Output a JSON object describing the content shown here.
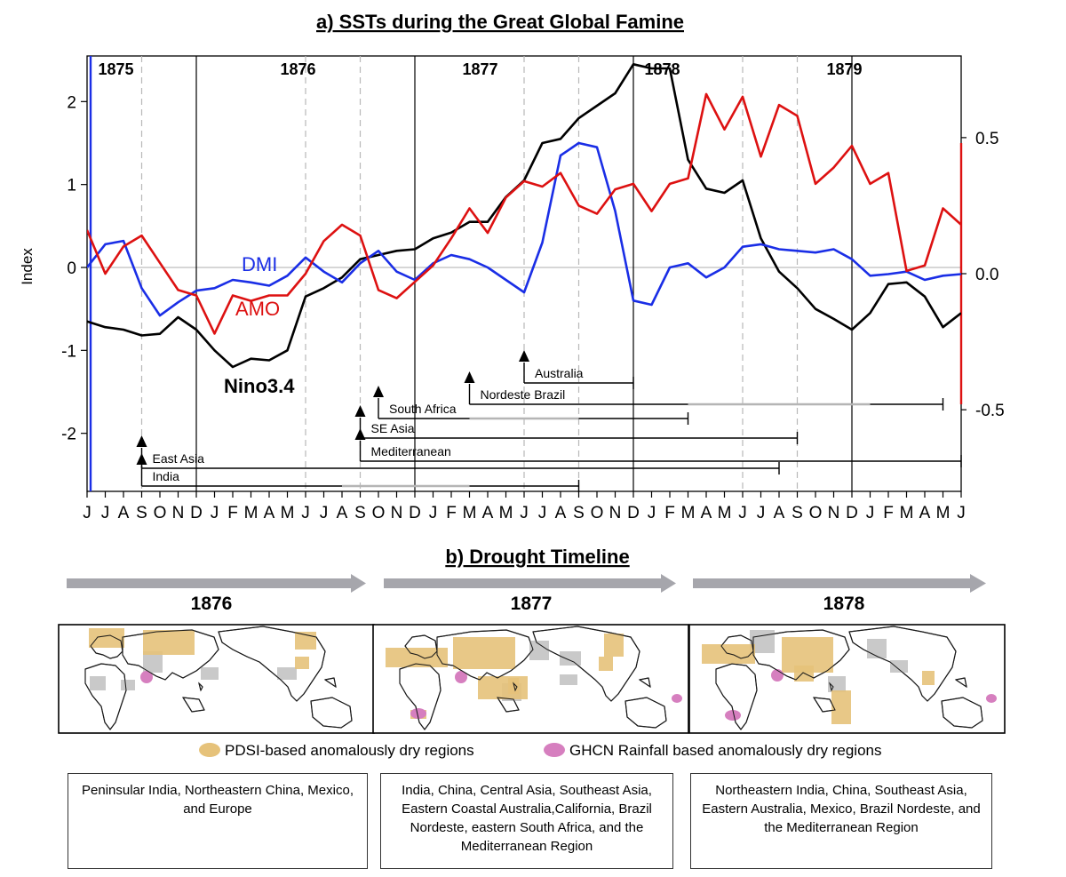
{
  "panel_a_title": "a) SSTs during the Great Global Famine",
  "panel_b_title": "b) Drought Timeline",
  "chart_data": {
    "type": "line",
    "title": "a) SSTs during the Great Global Famine",
    "ylabel": "Index",
    "ylim_left": [
      -2.7,
      2.55
    ],
    "yticks_left": [
      "-2",
      "-1",
      "0",
      "1",
      "2"
    ],
    "ylim_right": [
      -0.8,
      0.8
    ],
    "yticks_right": [
      "-0.5",
      "0.0",
      "0.5"
    ],
    "x_month_labels": [
      "J",
      "J",
      "A",
      "S",
      "O",
      "N",
      "D",
      "J",
      "F",
      "M",
      "A",
      "M",
      "J",
      "J",
      "A",
      "S",
      "O",
      "N",
      "D",
      "J",
      "F",
      "M",
      "A",
      "M",
      "J",
      "J",
      "A",
      "S",
      "O",
      "N",
      "D",
      "J",
      "F",
      "M",
      "A",
      "M",
      "J",
      "J",
      "A",
      "S",
      "O",
      "N",
      "D",
      "J",
      "F",
      "M",
      "A",
      "M",
      "J"
    ],
    "x_start": "1875-06",
    "x_end": "1879-06",
    "year_labels": [
      {
        "label": "1875",
        "month_index": 1
      },
      {
        "label": "1876",
        "month_index": 11
      },
      {
        "label": "1877",
        "month_index": 21
      },
      {
        "label": "1878",
        "month_index": 31
      },
      {
        "label": "1879",
        "month_index": 41
      }
    ],
    "series": [
      {
        "name": "Nino3.4",
        "axis": "left",
        "color": "#000000",
        "values": [
          -0.65,
          -0.72,
          -0.75,
          -0.82,
          -0.8,
          -0.6,
          -0.75,
          -1.0,
          -1.2,
          -1.1,
          -1.12,
          -1.0,
          -0.35,
          -0.25,
          -0.12,
          0.1,
          0.15,
          0.2,
          0.22,
          0.35,
          0.42,
          0.55,
          0.55,
          0.85,
          1.05,
          1.5,
          1.55,
          1.8,
          1.95,
          2.1,
          2.45,
          2.4,
          2.4,
          1.3,
          0.95,
          0.9,
          1.05,
          0.35,
          -0.05,
          -0.25,
          -0.5,
          -0.62,
          -0.75,
          -0.55,
          -0.2,
          -0.18,
          -0.35,
          -0.72,
          -0.55
        ]
      },
      {
        "name": "DMI",
        "axis": "left",
        "color": "#1a2ee6",
        "values": [
          0.0,
          0.28,
          0.32,
          -0.25,
          -0.58,
          -0.42,
          -0.28,
          -0.25,
          -0.15,
          -0.18,
          -0.22,
          -0.1,
          0.12,
          -0.05,
          -0.18,
          0.05,
          0.2,
          -0.05,
          -0.15,
          0.05,
          0.15,
          0.1,
          0.0,
          -0.15,
          -0.3,
          0.3,
          1.35,
          1.5,
          1.45,
          0.68,
          -0.4,
          -0.45,
          0.0,
          0.05,
          -0.12,
          0.0,
          0.25,
          0.28,
          0.22,
          0.2,
          0.18,
          0.22,
          0.1,
          -0.1,
          -0.08,
          -0.05,
          -0.15,
          -0.1,
          -0.08
        ]
      },
      {
        "name": "AMO",
        "axis": "right",
        "color": "#dd1111",
        "values": [
          0.16,
          0.0,
          0.1,
          0.14,
          0.04,
          -0.06,
          -0.08,
          -0.22,
          -0.08,
          -0.1,
          -0.08,
          -0.08,
          0.0,
          0.12,
          0.18,
          0.14,
          -0.06,
          -0.09,
          -0.03,
          0.03,
          0.13,
          0.24,
          0.15,
          0.28,
          0.34,
          0.32,
          0.37,
          0.25,
          0.22,
          0.31,
          0.33,
          0.23,
          0.33,
          0.35,
          0.66,
          0.53,
          0.65,
          0.43,
          0.62,
          0.58,
          0.33,
          0.39,
          0.47,
          0.33,
          0.37,
          0.01,
          0.03,
          0.24,
          0.18
        ]
      }
    ],
    "series_labels": [
      "DMI",
      "AMO",
      "Nino3.4"
    ],
    "regions": [
      {
        "name": "Australia",
        "start_month_index": 24,
        "end_month_index": 30
      },
      {
        "name": "Nordeste Brazil",
        "start_month_index": 21,
        "end_month_index": 47
      },
      {
        "name": "South Africa",
        "start_month_index": 16,
        "end_month_index": 33
      },
      {
        "name": "SE Asia",
        "start_month_index": 15,
        "end_month_index": 39
      },
      {
        "name": "Mediterranean",
        "start_month_index": 15,
        "end_month_index": 48
      },
      {
        "name": "East Asia",
        "start_month_index": 3,
        "end_month_index": 38
      },
      {
        "name": "India",
        "start_month_index": 3,
        "end_month_index": 27
      }
    ]
  },
  "timeline": {
    "years": [
      "1876",
      "1877",
      "1878"
    ],
    "legend": {
      "pdsi_label": "PDSI-based anomalously dry regions",
      "pdsi_color": "#e6c27a",
      "ghcn_label": "GHCN Rainfall based anomalously dry regions",
      "ghcn_color": "#d67fbf"
    },
    "region_text": [
      "Peninsular India, Northeastern China, Mexico, and Europe",
      "India, China, Central Asia, Southeast Asia, Eastern Coastal Australia,California, Brazil Nordeste, eastern South Africa, and the Mediterranean Region",
      "Northeastern India, China, Southeast Asia, Eastern Australia, Mexico, Brazil Nordeste, and the Mediterranean Region"
    ]
  }
}
